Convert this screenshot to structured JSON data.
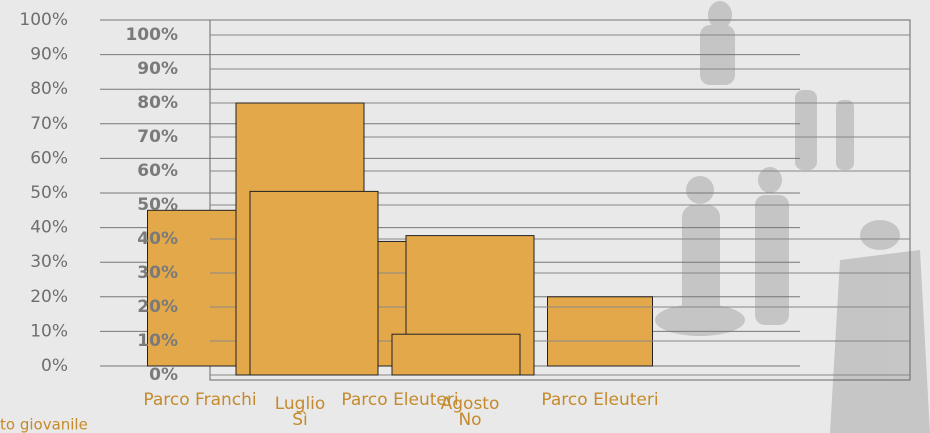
{
  "chart_data": [
    {
      "type": "bar",
      "categories": [
        "Parco Franchi",
        "Parco Eleuteri",
        "Parco Eleuteri"
      ],
      "values": [
        45,
        36,
        20
      ],
      "color": "#e3a84a",
      "ylim": [
        0,
        100
      ],
      "yticks": [
        {
          "value": 0,
          "label": "0%"
        },
        {
          "value": 10,
          "label": "10%"
        },
        {
          "value": 20,
          "label": "20%"
        },
        {
          "value": 30,
          "label": "30%"
        },
        {
          "value": 40,
          "label": "40%"
        },
        {
          "value": 50,
          "label": "50%"
        },
        {
          "value": 60,
          "label": "60%"
        },
        {
          "value": 70,
          "label": "70%"
        },
        {
          "value": 80,
          "label": "80%"
        },
        {
          "value": 90,
          "label": "90%"
        },
        {
          "value": 100,
          "label": "100%"
        }
      ],
      "grid": true
    },
    {
      "type": "groupedbar",
      "categories": [
        "Luglio",
        "Agosto"
      ],
      "sublabels": [
        "Sì",
        "No"
      ],
      "series": [
        {
          "color": "#e3a84a",
          "values": [
            80,
            41
          ]
        },
        {
          "color": "#e3a84a",
          "values": [
            54,
            12
          ]
        }
      ],
      "ylim": [
        0,
        100
      ],
      "yticks": [
        {
          "value": 0,
          "label": "0%"
        },
        {
          "value": 10,
          "label": "10%"
        },
        {
          "value": 20,
          "label": "20%"
        },
        {
          "value": 30,
          "label": "30%"
        },
        {
          "value": 40,
          "label": "40%"
        },
        {
          "value": 50,
          "label": "50%"
        },
        {
          "value": 60,
          "label": "60%"
        },
        {
          "value": 70,
          "label": "70%"
        },
        {
          "value": 80,
          "label": "80%"
        },
        {
          "value": 90,
          "label": "90%"
        },
        {
          "value": 100,
          "label": "100%"
        }
      ],
      "grid": true
    }
  ],
  "footer": "to giovanile"
}
